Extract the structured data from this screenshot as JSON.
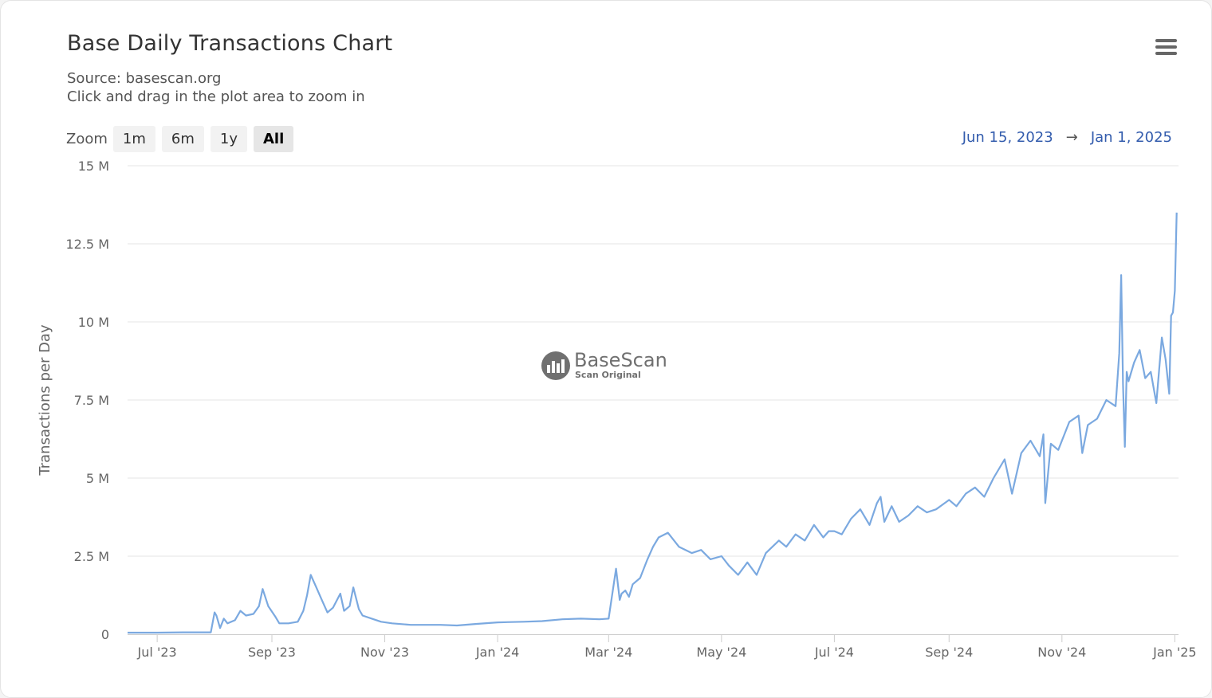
{
  "header": {
    "title": "Base Daily Transactions Chart",
    "source": "Source: basescan.org",
    "hint": "Click and drag in the plot area to zoom in"
  },
  "zoom": {
    "label": "Zoom",
    "buttons": [
      "1m",
      "6m",
      "1y",
      "All"
    ],
    "active": "All"
  },
  "range": {
    "from": "Jun 15, 2023",
    "arrow": "→",
    "to": "Jan 1, 2025"
  },
  "watermark": {
    "brand": "BaseScan",
    "tagline": "Scan Original"
  },
  "colors": {
    "line": "#7ba9e0",
    "grid": "#e6e6e6",
    "axis_text": "#666666",
    "range_text": "#335cad"
  },
  "icons": {
    "menu": "hamburger-menu-icon",
    "watermark_logo": "basescan-logo-icon"
  },
  "chart_data": {
    "type": "line",
    "xlabel": "",
    "ylabel": "Transactions per Day",
    "ylim": [
      0,
      15000000
    ],
    "xlim": [
      "2023-06-15",
      "2025-01-03"
    ],
    "yticks": [
      {
        "value": 0,
        "label": "0"
      },
      {
        "value": 2500000,
        "label": "2.5 M"
      },
      {
        "value": 5000000,
        "label": "5 M"
      },
      {
        "value": 7500000,
        "label": "7.5 M"
      },
      {
        "value": 10000000,
        "label": "10 M"
      },
      {
        "value": 12500000,
        "label": "12.5 M"
      },
      {
        "value": 15000000,
        "label": "15 M"
      }
    ],
    "xticks": [
      {
        "date": "2023-07-01",
        "label": "Jul '23"
      },
      {
        "date": "2023-09-01",
        "label": "Sep '23"
      },
      {
        "date": "2023-11-01",
        "label": "Nov '23"
      },
      {
        "date": "2024-01-01",
        "label": "Jan '24"
      },
      {
        "date": "2024-03-01",
        "label": "Mar '24"
      },
      {
        "date": "2024-05-01",
        "label": "May '24"
      },
      {
        "date": "2024-07-01",
        "label": "Jul '24"
      },
      {
        "date": "2024-09-01",
        "label": "Sep '24"
      },
      {
        "date": "2024-11-01",
        "label": "Nov '24"
      },
      {
        "date": "2025-01-01",
        "label": "Jan '25"
      }
    ],
    "grid": true,
    "legend": "none",
    "series": [
      {
        "x": [
          "2023-06-15",
          "2023-07-01",
          "2023-07-15",
          "2023-07-30",
          "2023-08-01",
          "2023-08-02",
          "2023-08-04",
          "2023-08-06",
          "2023-08-08",
          "2023-08-12",
          "2023-08-15",
          "2023-08-18",
          "2023-08-22",
          "2023-08-25",
          "2023-08-27",
          "2023-08-30",
          "2023-09-03",
          "2023-09-05",
          "2023-09-10",
          "2023-09-15",
          "2023-09-18",
          "2023-09-20",
          "2023-09-22",
          "2023-09-25",
          "2023-09-28",
          "2023-10-01",
          "2023-10-04",
          "2023-10-08",
          "2023-10-10",
          "2023-10-13",
          "2023-10-15",
          "2023-10-18",
          "2023-10-20",
          "2023-10-25",
          "2023-10-30",
          "2023-11-05",
          "2023-11-15",
          "2023-11-25",
          "2023-12-01",
          "2023-12-10",
          "2023-12-20",
          "2024-01-01",
          "2024-01-15",
          "2024-01-25",
          "2024-02-05",
          "2024-02-15",
          "2024-02-25",
          "2024-03-01",
          "2024-03-05",
          "2024-03-07",
          "2024-03-08",
          "2024-03-10",
          "2024-03-12",
          "2024-03-14",
          "2024-03-18",
          "2024-03-22",
          "2024-03-25",
          "2024-03-28",
          "2024-04-02",
          "2024-04-08",
          "2024-04-15",
          "2024-04-20",
          "2024-04-25",
          "2024-05-01",
          "2024-05-05",
          "2024-05-10",
          "2024-05-15",
          "2024-05-20",
          "2024-05-25",
          "2024-06-01",
          "2024-06-05",
          "2024-06-10",
          "2024-06-15",
          "2024-06-20",
          "2024-06-25",
          "2024-06-28",
          "2024-07-01",
          "2024-07-05",
          "2024-07-10",
          "2024-07-15",
          "2024-07-20",
          "2024-07-24",
          "2024-07-26",
          "2024-07-28",
          "2024-08-01",
          "2024-08-05",
          "2024-08-10",
          "2024-08-15",
          "2024-08-20",
          "2024-08-25",
          "2024-09-01",
          "2024-09-05",
          "2024-09-10",
          "2024-09-15",
          "2024-09-20",
          "2024-09-25",
          "2024-10-01",
          "2024-10-05",
          "2024-10-10",
          "2024-10-15",
          "2024-10-20",
          "2024-10-22",
          "2024-10-23",
          "2024-10-26",
          "2024-10-30",
          "2024-11-05",
          "2024-11-10",
          "2024-11-12",
          "2024-11-15",
          "2024-11-20",
          "2024-11-25",
          "2024-11-30",
          "2024-12-02",
          "2024-12-03",
          "2024-12-04",
          "2024-12-05",
          "2024-12-06",
          "2024-12-07",
          "2024-12-10",
          "2024-12-13",
          "2024-12-16",
          "2024-12-19",
          "2024-12-22",
          "2024-12-25",
          "2024-12-27",
          "2024-12-29",
          "2024-12-30",
          "2024-12-31",
          "2025-01-01",
          "2025-01-02"
        ],
        "values": [
          50000,
          50000,
          60000,
          60000,
          700000,
          600000,
          200000,
          500000,
          350000,
          450000,
          750000,
          600000,
          650000,
          900000,
          1450000,
          900000,
          550000,
          350000,
          350000,
          400000,
          750000,
          1250000,
          1900000,
          1500000,
          1100000,
          700000,
          850000,
          1300000,
          750000,
          900000,
          1500000,
          800000,
          600000,
          500000,
          400000,
          350000,
          300000,
          300000,
          300000,
          280000,
          330000,
          380000,
          400000,
          420000,
          480000,
          500000,
          480000,
          500000,
          2100000,
          1100000,
          1300000,
          1400000,
          1200000,
          1600000,
          1800000,
          2400000,
          2800000,
          3100000,
          3250000,
          2800000,
          2600000,
          2700000,
          2400000,
          2500000,
          2200000,
          1900000,
          2300000,
          1900000,
          2600000,
          3000000,
          2800000,
          3200000,
          3000000,
          3500000,
          3100000,
          3300000,
          3300000,
          3200000,
          3700000,
          4000000,
          3500000,
          4200000,
          4400000,
          3600000,
          4100000,
          3600000,
          3800000,
          4100000,
          3900000,
          4000000,
          4300000,
          4100000,
          4500000,
          4700000,
          4400000,
          5000000,
          5600000,
          4500000,
          5800000,
          6200000,
          5700000,
          6400000,
          4200000,
          6100000,
          5900000,
          6800000,
          7000000,
          5800000,
          6700000,
          6900000,
          7500000,
          7300000,
          9000000,
          11500000,
          8000000,
          6000000,
          8400000,
          8100000,
          8700000,
          9100000,
          8200000,
          8400000,
          7400000,
          9500000,
          8800000,
          7700000,
          10200000,
          10300000,
          11000000,
          13500000
        ]
      }
    ]
  }
}
